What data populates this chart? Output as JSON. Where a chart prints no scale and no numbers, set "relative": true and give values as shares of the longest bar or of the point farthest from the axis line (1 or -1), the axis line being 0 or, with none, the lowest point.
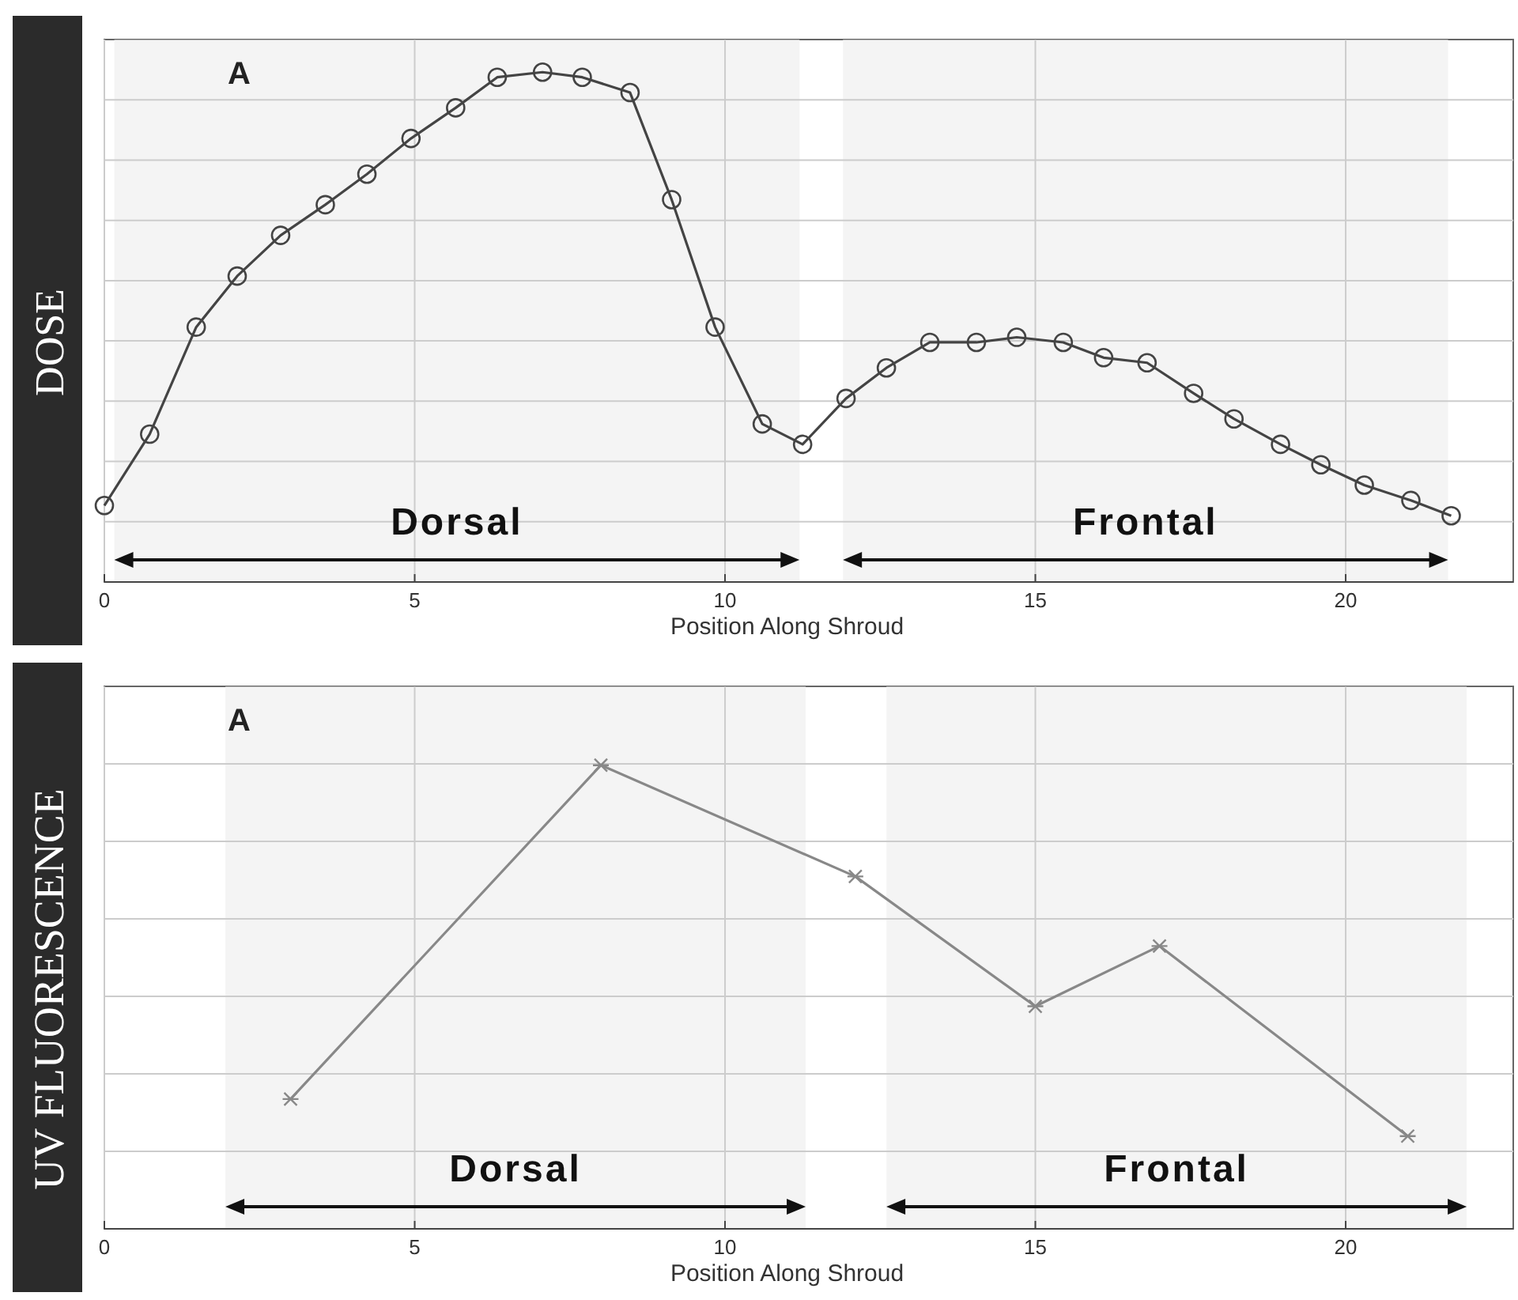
{
  "chart_data": [
    {
      "type": "line",
      "relative": true,
      "ylabel": "DOSE",
      "xlabel": "Position Along Shroud",
      "annotations": [
        "A"
      ],
      "marker": "circle",
      "grid": true,
      "tick_labels": "x",
      "xlim": [
        0,
        22.7
      ],
      "xticks": [
        0,
        5,
        10,
        15,
        20
      ],
      "x": [
        0,
        0.73,
        1.48,
        2.14,
        2.84,
        3.56,
        4.23,
        4.94,
        5.66,
        6.33,
        7.06,
        7.7,
        8.47,
        9.14,
        9.84,
        10.6,
        11.25,
        11.95,
        12.6,
        13.3,
        14.05,
        14.7,
        15.45,
        16.1,
        16.8,
        17.55,
        18.2,
        18.95,
        19.6,
        20.3,
        21.05,
        21.7
      ],
      "series": [
        {
          "color": "#444444",
          "values": [
            0.15,
            0.29,
            0.5,
            0.6,
            0.68,
            0.74,
            0.8,
            0.87,
            0.93,
            0.99,
            1,
            0.99,
            0.96,
            0.75,
            0.5,
            0.31,
            0.27,
            0.36,
            0.42,
            0.47,
            0.47,
            0.48,
            0.47,
            0.44,
            0.43,
            0.37,
            0.32,
            0.27,
            0.23,
            0.19,
            0.16,
            0.13
          ]
        }
      ],
      "bands": [
        {
          "axis": "x",
          "from": 0.16,
          "to": 11.2,
          "label": "Dorsal",
          "color": "#ececec"
        },
        {
          "axis": "x",
          "from": 11.9,
          "to": 21.65,
          "label": "Frontal",
          "color": "#ececec"
        }
      ]
    },
    {
      "type": "line",
      "relative": true,
      "ylabel": "UV FLUORESCENCE",
      "xlabel": "Position Along Shroud",
      "annotations": [
        "A"
      ],
      "marker": "cross",
      "grid": true,
      "tick_labels": "x",
      "xlim": [
        0,
        22.7
      ],
      "xticks": [
        0,
        5,
        10,
        15,
        20
      ],
      "x": [
        3,
        8,
        12.1,
        15,
        17,
        21
      ],
      "series": [
        {
          "color": "#888888",
          "values": [
            0.28,
            1,
            0.76,
            0.48,
            0.61,
            0.2
          ]
        }
      ],
      "bands": [
        {
          "axis": "x",
          "from": 1.95,
          "to": 11.3,
          "label": "Dorsal",
          "color": "#ececec"
        },
        {
          "axis": "x",
          "from": 12.6,
          "to": 21.95,
          "label": "Frontal",
          "color": "#ececec"
        }
      ]
    }
  ]
}
